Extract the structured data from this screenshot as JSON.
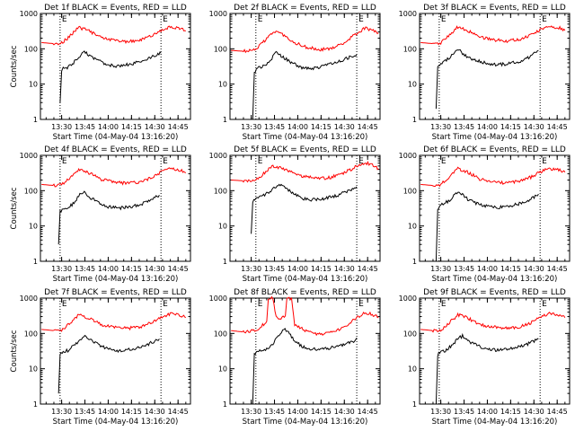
{
  "chart_data": [
    {
      "type": "line",
      "title": "Det 1f BLACK = Events, RED = LLD",
      "xlabel": "Start Time (04-May-04 13:16:20)",
      "ylabel": "Counts/sec",
      "yscale": "log",
      "ylim": [
        1,
        1000
      ],
      "yticks": [
        "1",
        "10",
        "100",
        "1000"
      ],
      "xlim": [
        "13:16:20",
        "14:53"
      ],
      "xticks": [
        "13:30",
        "13:45",
        "14:00",
        "14:15",
        "14:30",
        "14:45"
      ],
      "markers": [
        {
          "label": "E",
          "x": "13:29"
        },
        {
          "label": "E",
          "x": "14:34"
        }
      ],
      "series": [
        {
          "color": "#ff0000",
          "x": [
            "13:17",
            "13:25",
            "13:30",
            "13:35",
            "13:41",
            "13:47",
            "13:55",
            "14:04",
            "14:12",
            "14:20",
            "14:28",
            "14:34",
            "14:40",
            "14:46",
            "14:50"
          ],
          "values": [
            150,
            140,
            145,
            220,
            400,
            330,
            210,
            175,
            160,
            175,
            235,
            330,
            410,
            390,
            320
          ]
        },
        {
          "color": "#000000",
          "x": [
            "13:29",
            "13:30",
            "13:31",
            "13:33",
            "13:37",
            "13:41",
            "13:44",
            "13:48",
            "13:54",
            "14:00",
            "14:05",
            "14:12",
            "14:20",
            "14:28",
            "14:34"
          ],
          "values": [
            3,
            25,
            30,
            28,
            38,
            55,
            90,
            65,
            45,
            35,
            32,
            35,
            42,
            58,
            75
          ]
        }
      ]
    },
    {
      "type": "line",
      "title": "Det 2f BLACK = Events, RED = LLD",
      "xlabel": "Start Time (04-May-04 13:16:20)",
      "ylabel": "",
      "yscale": "log",
      "ylim": [
        1,
        1000
      ],
      "yticks": [
        "1",
        "10",
        "100",
        "1000"
      ],
      "xlim": [
        "13:16:20",
        "14:53"
      ],
      "xticks": [
        "13:30",
        "13:45",
        "14:00",
        "14:15",
        "14:30",
        "14:45"
      ],
      "markers": [
        {
          "label": "E",
          "x": "13:33"
        },
        {
          "label": "E",
          "x": "14:38"
        }
      ],
      "series": [
        {
          "color": "#ff0000",
          "x": [
            "13:17",
            "13:25",
            "13:33",
            "13:38",
            "13:44",
            "13:50",
            "13:58",
            "14:06",
            "14:14",
            "14:22",
            "14:30",
            "14:37",
            "14:43",
            "14:48",
            "14:52"
          ],
          "values": [
            90,
            85,
            95,
            160,
            300,
            260,
            150,
            110,
            95,
            105,
            150,
            260,
            380,
            350,
            280
          ]
        },
        {
          "color": "#000000",
          "x": [
            "13:31",
            "13:32",
            "13:34",
            "13:37",
            "13:42",
            "13:46",
            "13:50",
            "13:56",
            "14:02",
            "14:08",
            "14:16",
            "14:24",
            "14:32",
            "14:38"
          ],
          "values": [
            1,
            22,
            28,
            30,
            45,
            80,
            60,
            40,
            30,
            27,
            32,
            40,
            55,
            70
          ]
        }
      ]
    },
    {
      "type": "line",
      "title": "Det 3f BLACK = Events, RED = LLD",
      "xlabel": "Start Time (04-May-04 13:16:20)",
      "ylabel": "",
      "yscale": "log",
      "ylim": [
        1,
        1000
      ],
      "yticks": [
        "1",
        "10",
        "100",
        "1000"
      ],
      "xlim": [
        "13:16:20",
        "14:53"
      ],
      "xticks": [
        "13:30",
        "13:45",
        "14:00",
        "14:15",
        "14:30",
        "14:45"
      ],
      "markers": [
        {
          "label": "E",
          "x": "13:29"
        },
        {
          "label": "E",
          "x": "14:34"
        }
      ],
      "series": [
        {
          "color": "#ff0000",
          "x": [
            "13:17",
            "13:25",
            "13:30",
            "13:35",
            "13:41",
            "13:47",
            "13:55",
            "14:04",
            "14:12",
            "14:20",
            "14:28",
            "14:34",
            "14:40",
            "14:46",
            "14:50"
          ],
          "values": [
            150,
            140,
            150,
            230,
            420,
            340,
            215,
            180,
            165,
            180,
            240,
            340,
            420,
            400,
            330
          ]
        },
        {
          "color": "#000000",
          "x": [
            "13:27",
            "13:28",
            "13:30",
            "13:33",
            "13:37",
            "13:41",
            "13:44",
            "13:48",
            "13:54",
            "14:00",
            "14:06",
            "14:14",
            "14:22",
            "14:28",
            "14:33"
          ],
          "values": [
            2,
            30,
            38,
            45,
            65,
            100,
            75,
            55,
            45,
            38,
            35,
            38,
            45,
            60,
            90
          ]
        }
      ]
    },
    {
      "type": "line",
      "title": "Det 4f BLACK = Events, RED = LLD",
      "xlabel": "Start Time (04-May-04 13:16:20)",
      "ylabel": "Counts/sec",
      "yscale": "log",
      "ylim": [
        1,
        1000
      ],
      "yticks": [
        "1",
        "10",
        "100",
        "1000"
      ],
      "xlim": [
        "13:16:20",
        "14:53"
      ],
      "xticks": [
        "13:30",
        "13:45",
        "14:00",
        "14:15",
        "14:30",
        "14:45"
      ],
      "markers": [
        {
          "label": "E",
          "x": "13:29"
        },
        {
          "label": "E",
          "x": "14:34"
        }
      ],
      "series": [
        {
          "color": "#ff0000",
          "x": [
            "13:17",
            "13:25",
            "13:30",
            "13:35",
            "13:41",
            "13:47",
            "13:55",
            "14:04",
            "14:12",
            "14:20",
            "14:28",
            "14:34",
            "14:40",
            "14:46",
            "14:50"
          ],
          "values": [
            150,
            140,
            145,
            220,
            400,
            330,
            210,
            175,
            160,
            175,
            235,
            330,
            410,
            390,
            320
          ]
        },
        {
          "color": "#000000",
          "x": [
            "13:28",
            "13:29",
            "13:31",
            "13:34",
            "13:38",
            "13:41",
            "13:44",
            "13:48",
            "13:54",
            "14:00",
            "14:06",
            "14:14",
            "14:22",
            "14:28",
            "14:33"
          ],
          "values": [
            3,
            25,
            30,
            32,
            45,
            70,
            95,
            65,
            45,
            35,
            32,
            35,
            42,
            58,
            75
          ]
        }
      ]
    },
    {
      "type": "line",
      "title": "Det 5f BLACK = Events, RED = LLD",
      "xlabel": "Start Time (04-May-04 13:16:20)",
      "ylabel": "",
      "yscale": "log",
      "ylim": [
        1,
        1000
      ],
      "yticks": [
        "1",
        "10",
        "100",
        "1000"
      ],
      "xlim": [
        "13:16:20",
        "14:53"
      ],
      "xticks": [
        "13:30",
        "13:45",
        "14:00",
        "14:15",
        "14:30",
        "14:45"
      ],
      "markers": [
        {
          "label": "E",
          "x": "13:33"
        },
        {
          "label": "E",
          "x": "14:38"
        }
      ],
      "series": [
        {
          "color": "#ff0000",
          "x": [
            "13:17",
            "13:25",
            "13:33",
            "13:38",
            "13:44",
            "13:50",
            "13:58",
            "14:06",
            "14:14",
            "14:22",
            "14:30",
            "14:37",
            "14:43",
            "14:48",
            "14:52"
          ],
          "values": [
            200,
            190,
            200,
            300,
            500,
            430,
            300,
            240,
            220,
            240,
            320,
            470,
            620,
            560,
            420
          ]
        },
        {
          "color": "#000000",
          "x": [
            "13:30",
            "13:31",
            "13:33",
            "13:36",
            "13:40",
            "13:44",
            "13:48",
            "13:52",
            "13:58",
            "14:04",
            "14:10",
            "14:18",
            "14:26",
            "14:33",
            "14:38"
          ],
          "values": [
            6,
            50,
            60,
            65,
            85,
            110,
            160,
            120,
            80,
            60,
            55,
            60,
            75,
            100,
            130
          ]
        }
      ]
    },
    {
      "type": "line",
      "title": "Det 6f BLACK = Events, RED = LLD",
      "xlabel": "Start Time (04-May-04 13:16:20)",
      "ylabel": "",
      "yscale": "log",
      "ylim": [
        1,
        1000
      ],
      "yticks": [
        "1",
        "10",
        "100",
        "1000"
      ],
      "xlim": [
        "13:16:20",
        "14:53"
      ],
      "xticks": [
        "13:30",
        "13:45",
        "14:00",
        "14:15",
        "14:30",
        "14:45"
      ],
      "markers": [
        {
          "label": "E",
          "x": "13:29"
        },
        {
          "label": "E",
          "x": "14:34"
        }
      ],
      "series": [
        {
          "color": "#ff0000",
          "x": [
            "13:17",
            "13:25",
            "13:30",
            "13:35",
            "13:41",
            "13:47",
            "13:55",
            "14:04",
            "14:12",
            "14:20",
            "14:28",
            "14:34",
            "14:40",
            "14:46",
            "14:50"
          ],
          "values": [
            150,
            140,
            150,
            230,
            420,
            340,
            215,
            180,
            165,
            180,
            240,
            340,
            420,
            400,
            330
          ]
        },
        {
          "color": "#000000",
          "x": [
            "13:27",
            "13:28",
            "13:30",
            "13:33",
            "13:37",
            "13:41",
            "13:44",
            "13:48",
            "13:54",
            "14:00",
            "14:06",
            "14:14",
            "14:22",
            "14:28",
            "14:33"
          ],
          "values": [
            1,
            30,
            38,
            45,
            60,
            95,
            75,
            55,
            42,
            36,
            33,
            37,
            44,
            58,
            80
          ]
        }
      ]
    },
    {
      "type": "line",
      "title": "Det 7f BLACK = Events, RED = LLD",
      "xlabel": "Start Time (04-May-04 13:16:20)",
      "ylabel": "Counts/sec",
      "yscale": "log",
      "ylim": [
        1,
        1000
      ],
      "yticks": [
        "1",
        "10",
        "100",
        "1000"
      ],
      "xlim": [
        "13:16:20",
        "14:53"
      ],
      "xticks": [
        "13:30",
        "13:45",
        "14:00",
        "14:15",
        "14:30",
        "14:45"
      ],
      "markers": [
        {
          "label": "E",
          "x": "13:29"
        },
        {
          "label": "E",
          "x": "14:34"
        }
      ],
      "series": [
        {
          "color": "#ff0000",
          "x": [
            "13:17",
            "13:25",
            "13:30",
            "13:35",
            "13:41",
            "13:47",
            "13:55",
            "14:04",
            "14:12",
            "14:20",
            "14:28",
            "14:34",
            "14:40",
            "14:46",
            "14:50"
          ],
          "values": [
            130,
            120,
            125,
            190,
            340,
            280,
            180,
            150,
            140,
            150,
            200,
            290,
            360,
            340,
            280
          ]
        },
        {
          "color": "#000000",
          "x": [
            "13:28",
            "13:29",
            "13:31",
            "13:34",
            "13:38",
            "13:42",
            "13:45",
            "13:49",
            "13:55",
            "14:01",
            "14:07",
            "14:14",
            "14:22",
            "14:28",
            "14:33"
          ],
          "values": [
            2,
            25,
            30,
            33,
            45,
            65,
            85,
            65,
            45,
            35,
            32,
            35,
            42,
            55,
            70
          ]
        }
      ]
    },
    {
      "type": "line",
      "title": "Det 8f BLACK = Events, RED = LLD",
      "xlabel": "Start Time (04-May-04 13:16:20)",
      "ylabel": "",
      "yscale": "log",
      "ylim": [
        1,
        1000
      ],
      "yticks": [
        "1",
        "10",
        "100",
        "1000"
      ],
      "xlim": [
        "13:16:20",
        "14:53"
      ],
      "xticks": [
        "13:30",
        "13:45",
        "14:00",
        "14:15",
        "14:30",
        "14:45"
      ],
      "markers": [
        {
          "label": "E",
          "x": "13:33"
        },
        {
          "label": "E",
          "x": "14:38"
        }
      ],
      "series": [
        {
          "color": "#ff0000",
          "x": [
            "13:17",
            "13:25",
            "13:33",
            "13:36",
            "13:40",
            "13:41",
            "13:44",
            "13:46",
            "13:47",
            "13:52",
            "13:53",
            "13:56",
            "13:58",
            "14:06",
            "14:14",
            "14:22",
            "14:30",
            "14:37",
            "14:43",
            "14:48",
            "14:52"
          ],
          "values": [
            120,
            110,
            120,
            150,
            220,
            1000,
            1000,
            300,
            250,
            300,
            1000,
            1000,
            180,
            110,
            95,
            105,
            150,
            260,
            380,
            350,
            280
          ]
        },
        {
          "color": "#000000",
          "x": [
            "13:31",
            "13:32",
            "13:34",
            "13:37",
            "13:40",
            "13:44",
            "13:48",
            "13:51",
            "13:54",
            "13:58",
            "14:04",
            "14:12",
            "14:20",
            "14:28",
            "14:36",
            "14:38"
          ],
          "values": [
            1,
            25,
            30,
            32,
            35,
            50,
            90,
            130,
            110,
            60,
            40,
            35,
            38,
            45,
            60,
            75
          ]
        }
      ]
    },
    {
      "type": "line",
      "title": "Det 9f BLACK = Events, RED = LLD",
      "xlabel": "Start Time (04-May-04 13:16:20)",
      "ylabel": "",
      "yscale": "log",
      "ylim": [
        1,
        1000
      ],
      "yticks": [
        "1",
        "10",
        "100",
        "1000"
      ],
      "xlim": [
        "13:16:20",
        "14:53"
      ],
      "xticks": [
        "13:30",
        "13:45",
        "14:00",
        "14:15",
        "14:30",
        "14:45"
      ],
      "markers": [
        {
          "label": "E",
          "x": "13:29"
        },
        {
          "label": "E",
          "x": "14:34"
        }
      ],
      "series": [
        {
          "color": "#ff0000",
          "x": [
            "13:17",
            "13:25",
            "13:30",
            "13:35",
            "13:41",
            "13:47",
            "13:55",
            "14:04",
            "14:12",
            "14:20",
            "14:28",
            "14:34",
            "14:40",
            "14:46",
            "14:50"
          ],
          "values": [
            130,
            120,
            125,
            190,
            340,
            280,
            180,
            150,
            140,
            150,
            200,
            290,
            360,
            340,
            280
          ]
        },
        {
          "color": "#000000",
          "x": [
            "13:27",
            "13:28",
            "13:30",
            "13:33",
            "13:37",
            "13:41",
            "13:44",
            "13:48",
            "13:54",
            "14:00",
            "14:06",
            "14:14",
            "14:22",
            "14:28",
            "14:33"
          ],
          "values": [
            1,
            25,
            30,
            33,
            45,
            70,
            85,
            60,
            45,
            36,
            33,
            36,
            43,
            55,
            70
          ]
        }
      ]
    }
  ]
}
